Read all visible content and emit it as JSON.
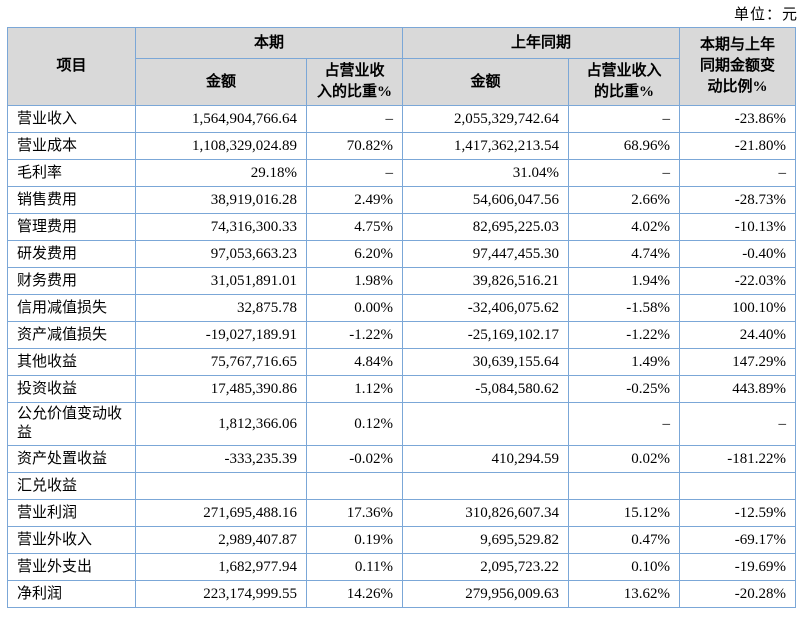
{
  "unit_label": "单位：元",
  "table": {
    "headers": {
      "item": "项目",
      "current_period_group": "本期",
      "prior_period_group": "上年同期",
      "current_amount": "金额",
      "current_pct": "占营业收\n入的比重%",
      "prior_amount": "金额",
      "prior_pct": "占营业收入\n的比重%",
      "change_ratio": "本期与上年\n同期金额变\n动比例%"
    },
    "rows": [
      {
        "item": "营业收入",
        "cur_amount": "1,564,904,766.64",
        "cur_pct": "–",
        "prior_amount": "2,055,329,742.64",
        "prior_pct": "–",
        "change": "-23.86%"
      },
      {
        "item": "营业成本",
        "cur_amount": "1,108,329,024.89",
        "cur_pct": "70.82%",
        "prior_amount": "1,417,362,213.54",
        "prior_pct": "68.96%",
        "change": "-21.80%"
      },
      {
        "item": "毛利率",
        "cur_amount": "29.18%",
        "cur_pct": "–",
        "prior_amount": "31.04%",
        "prior_pct": "–",
        "change": "–"
      },
      {
        "item": "销售费用",
        "cur_amount": "38,919,016.28",
        "cur_pct": "2.49%",
        "prior_amount": "54,606,047.56",
        "prior_pct": "2.66%",
        "change": "-28.73%"
      },
      {
        "item": "管理费用",
        "cur_amount": "74,316,300.33",
        "cur_pct": "4.75%",
        "prior_amount": "82,695,225.03",
        "prior_pct": "4.02%",
        "change": "-10.13%"
      },
      {
        "item": "研发费用",
        "cur_amount": "97,053,663.23",
        "cur_pct": "6.20%",
        "prior_amount": "97,447,455.30",
        "prior_pct": "4.74%",
        "change": "-0.40%"
      },
      {
        "item": "财务费用",
        "cur_amount": "31,051,891.01",
        "cur_pct": "1.98%",
        "prior_amount": "39,826,516.21",
        "prior_pct": "1.94%",
        "change": "-22.03%"
      },
      {
        "item": "信用减值损失",
        "cur_amount": "32,875.78",
        "cur_pct": "0.00%",
        "prior_amount": "-32,406,075.62",
        "prior_pct": "-1.58%",
        "change": "100.10%"
      },
      {
        "item": "资产减值损失",
        "cur_amount": "-19,027,189.91",
        "cur_pct": "-1.22%",
        "prior_amount": "-25,169,102.17",
        "prior_pct": "-1.22%",
        "change": "24.40%"
      },
      {
        "item": "其他收益",
        "cur_amount": "75,767,716.65",
        "cur_pct": "4.84%",
        "prior_amount": "30,639,155.64",
        "prior_pct": "1.49%",
        "change": "147.29%"
      },
      {
        "item": "投资收益",
        "cur_amount": "17,485,390.86",
        "cur_pct": "1.12%",
        "prior_amount": "-5,084,580.62",
        "prior_pct": "-0.25%",
        "change": "443.89%"
      },
      {
        "item": "公允价值变动收益",
        "cur_amount": "1,812,366.06",
        "cur_pct": "0.12%",
        "prior_amount": "",
        "prior_pct": "–",
        "change": "–"
      },
      {
        "item": "资产处置收益",
        "cur_amount": "-333,235.39",
        "cur_pct": "-0.02%",
        "prior_amount": "410,294.59",
        "prior_pct": "0.02%",
        "change": "-181.22%"
      },
      {
        "item": "汇兑收益",
        "cur_amount": "",
        "cur_pct": "",
        "prior_amount": "",
        "prior_pct": "",
        "change": ""
      },
      {
        "item": "营业利润",
        "cur_amount": "271,695,488.16",
        "cur_pct": "17.36%",
        "prior_amount": "310,826,607.34",
        "prior_pct": "15.12%",
        "change": "-12.59%"
      },
      {
        "item": "营业外收入",
        "cur_amount": "2,989,407.87",
        "cur_pct": "0.19%",
        "prior_amount": "9,695,529.82",
        "prior_pct": "0.47%",
        "change": "-69.17%"
      },
      {
        "item": "营业外支出",
        "cur_amount": "1,682,977.94",
        "cur_pct": "0.11%",
        "prior_amount": "2,095,723.22",
        "prior_pct": "0.10%",
        "change": "-19.69%"
      },
      {
        "item": "净利润",
        "cur_amount": "223,174,999.55",
        "cur_pct": "14.26%",
        "prior_amount": "279,956,009.63",
        "prior_pct": "13.62%",
        "change": "-20.28%"
      }
    ]
  }
}
